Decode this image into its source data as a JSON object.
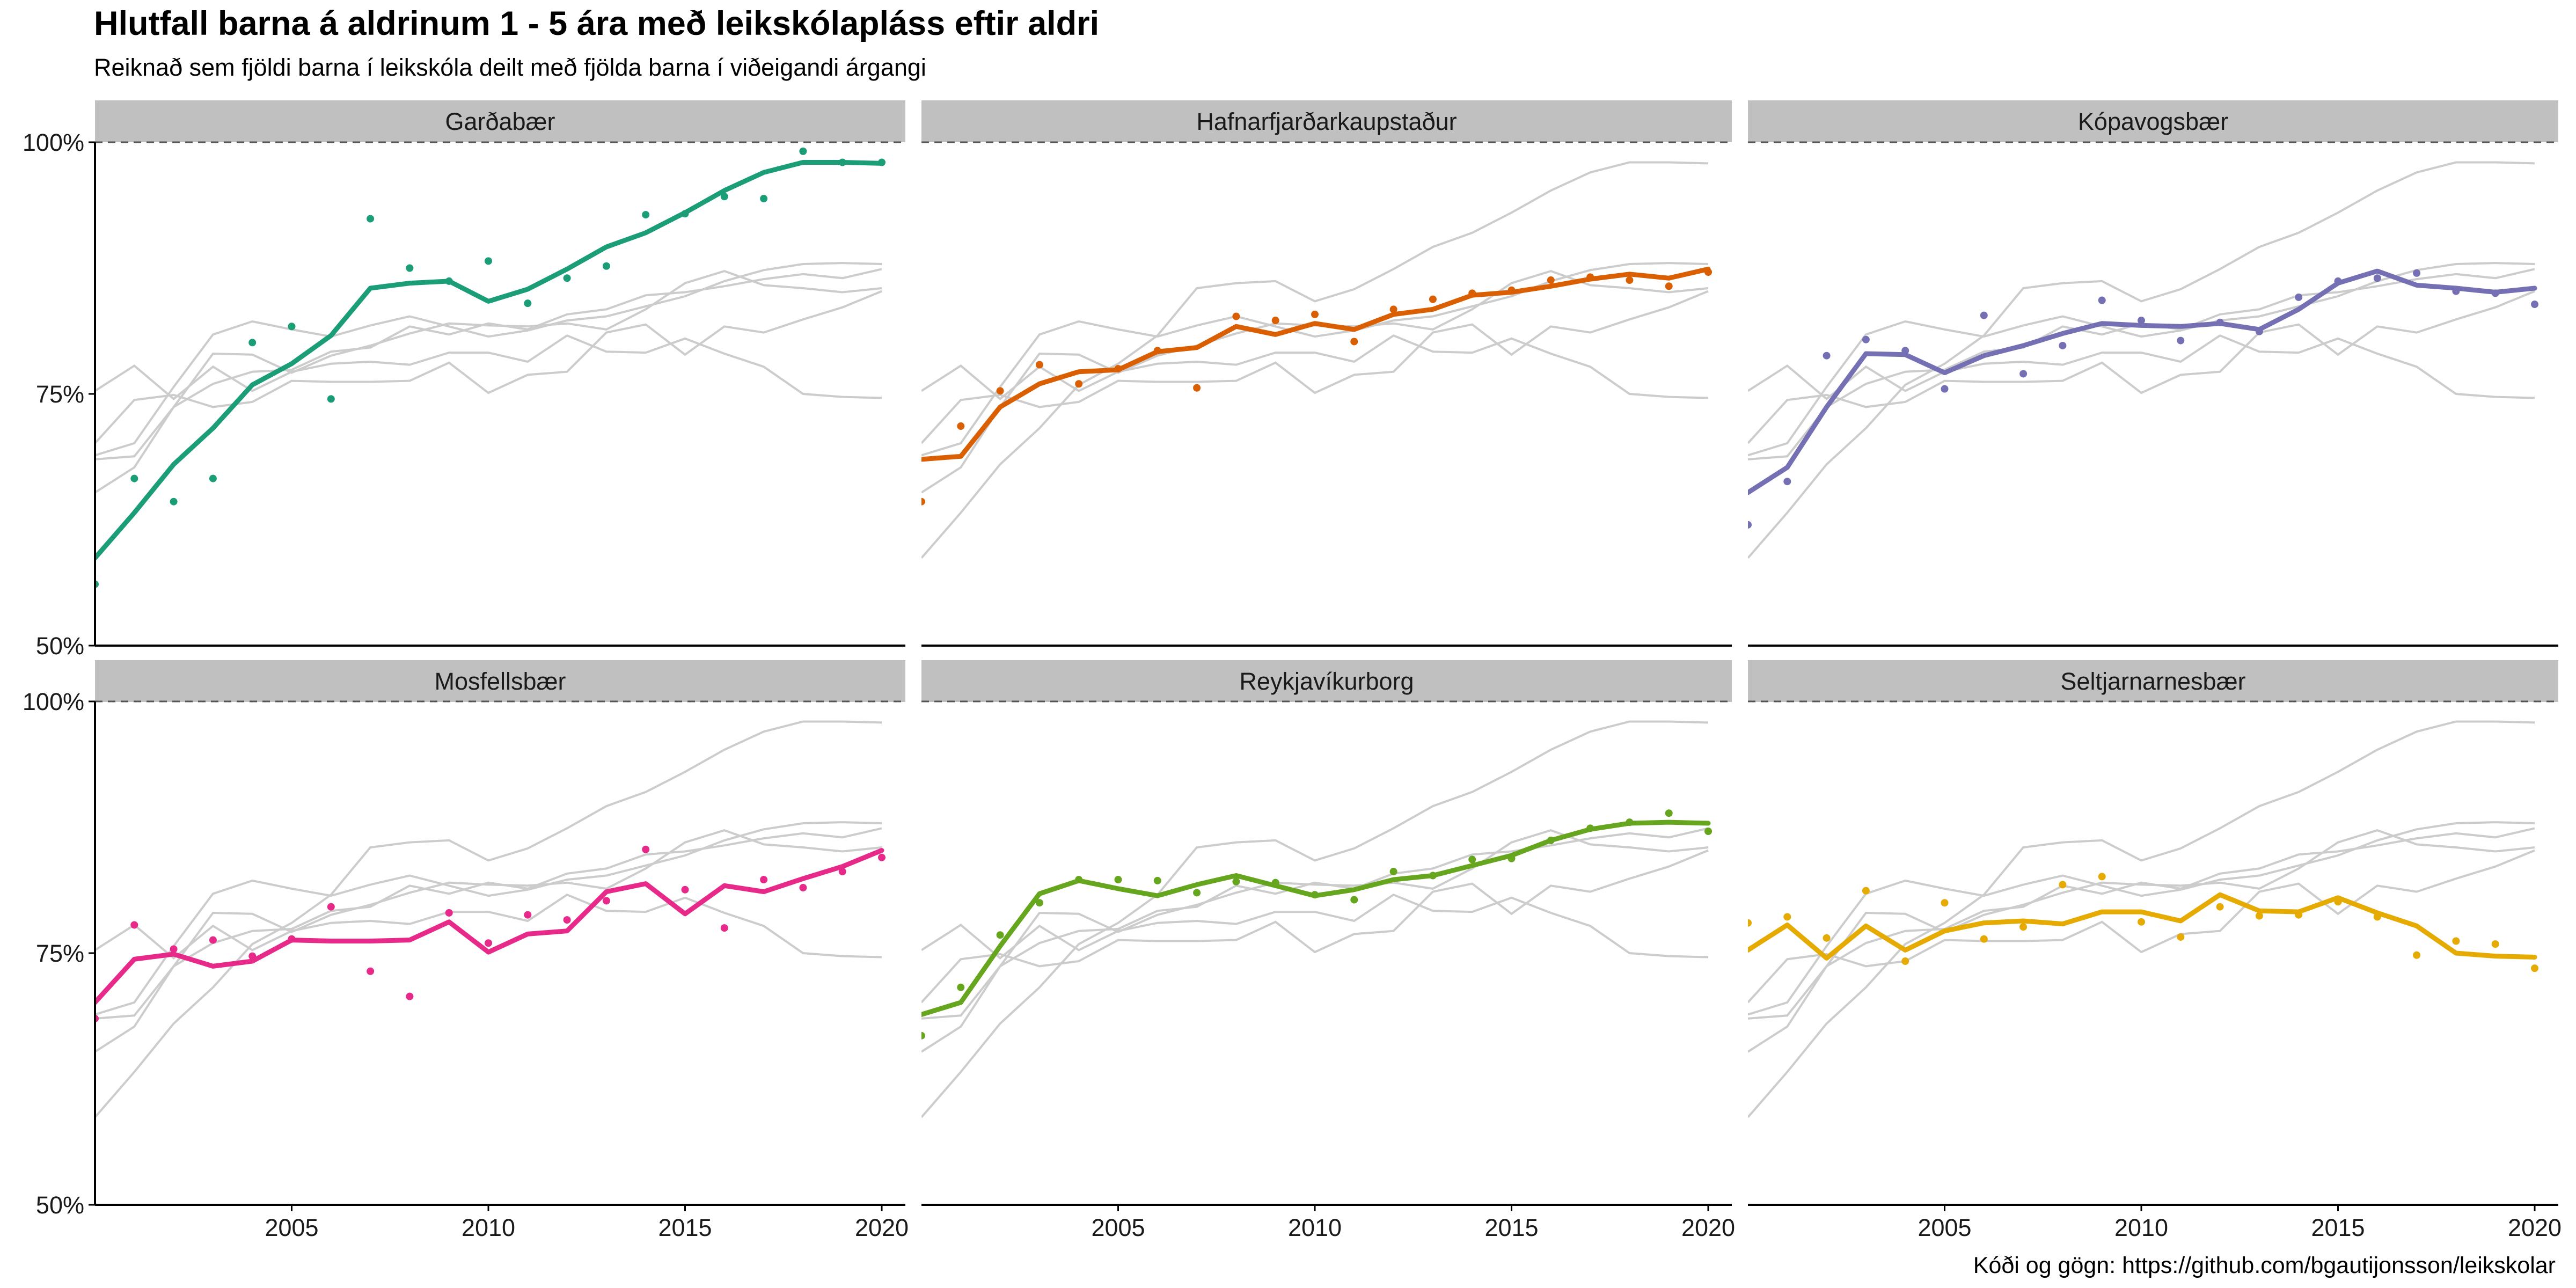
{
  "title": "Hlutfall barna á aldrinum 1 - 5 ára með leikskólapláss eftir aldri",
  "subtitle": "Reiknað sem fjöldi barna í leikskóla deilt með fjölda barna í viðeigandi árgangi",
  "caption": "Kóði og gögn: https://github.com/bgautijonsson/leikskolar",
  "chart_data": {
    "type": "line",
    "facets": [
      "Garðabær",
      "Hafnarfjarðarkaupstaður",
      "Kópavogsbær",
      "Mosfellsbær",
      "Reykjavíkurborg",
      "Seltjarnarnesbær"
    ],
    "x_ticks": [
      2005,
      2010,
      2015,
      2020
    ],
    "xlim": [
      2000,
      2020.6
    ],
    "y_ticks": [
      0.5,
      0.75,
      1.0
    ],
    "y_tick_labels": [
      "50%",
      "75%",
      "100%"
    ],
    "ylim": [
      0.5,
      1.0
    ],
    "reference_line": 1.0,
    "grid": false,
    "colors": {
      "Garðabær": "#1b9e77",
      "Hafnarfjarðarkaupstaður": "#d95f02",
      "Kópavogsbær": "#7570b3",
      "Mosfellsbær": "#e7298a",
      "Reykjavíkurborg": "#66a61e",
      "Seltjarnarnesbær": "#e6ab02",
      "background_lines": "#cccccc",
      "strip": "#c0c0c0"
    },
    "x": [
      2000,
      2001,
      2002,
      2003,
      2004,
      2005,
      2006,
      2007,
      2008,
      2009,
      2010,
      2011,
      2012,
      2013,
      2014,
      2015,
      2016,
      2017,
      2018,
      2019,
      2020
    ],
    "series": [
      {
        "name": "Garðabær",
        "trend": [
          0.587,
          0.632,
          0.68,
          0.716,
          0.759,
          0.78,
          0.808,
          0.855,
          0.86,
          0.862,
          0.842,
          0.854,
          0.874,
          0.896,
          0.91,
          0.93,
          0.952,
          0.97,
          0.98,
          0.98,
          0.979
        ],
        "points": [
          0.561,
          0.666,
          0.643,
          0.666,
          0.801,
          0.817,
          0.745,
          0.924,
          0.875,
          0.862,
          0.882,
          0.84,
          0.865,
          0.877,
          0.928,
          0.929,
          0.946,
          0.944,
          0.991,
          0.98,
          0.98
        ]
      },
      {
        "name": "Hafnarfjarðarkaupstaður",
        "trend": [
          0.685,
          0.688,
          0.737,
          0.76,
          0.772,
          0.774,
          0.792,
          0.796,
          0.817,
          0.809,
          0.82,
          0.814,
          0.829,
          0.834,
          0.848,
          0.851,
          0.857,
          0.864,
          0.869,
          0.865,
          0.874
        ],
        "points": [
          0.643,
          0.718,
          0.753,
          0.779,
          0.76,
          0.775,
          0.793,
          0.756,
          0.827,
          0.823,
          0.829,
          0.802,
          0.834,
          0.844,
          0.85,
          0.853,
          0.863,
          0.866,
          0.863,
          0.857,
          0.871
        ]
      },
      {
        "name": "Kópavogsbær",
        "trend": [
          0.652,
          0.677,
          0.737,
          0.79,
          0.789,
          0.771,
          0.788,
          0.798,
          0.81,
          0.82,
          0.818,
          0.817,
          0.82,
          0.814,
          0.834,
          0.86,
          0.872,
          0.858,
          0.855,
          0.851,
          0.855
        ],
        "points": [
          0.62,
          0.663,
          0.788,
          0.804,
          0.793,
          0.755,
          0.828,
          0.77,
          0.798,
          0.843,
          0.823,
          0.803,
          0.821,
          0.812,
          0.846,
          0.862,
          0.865,
          0.87,
          0.852,
          0.85,
          0.839
        ]
      },
      {
        "name": "Mosfellsbær",
        "trend": [
          0.701,
          0.744,
          0.749,
          0.737,
          0.742,
          0.763,
          0.762,
          0.762,
          0.763,
          0.781,
          0.751,
          0.769,
          0.772,
          0.811,
          0.819,
          0.789,
          0.817,
          0.811,
          0.824,
          0.836,
          0.852
        ],
        "points": [
          0.685,
          0.778,
          0.754,
          0.763,
          0.747,
          0.764,
          0.796,
          0.732,
          0.707,
          0.79,
          0.76,
          0.788,
          0.783,
          0.802,
          0.853,
          0.813,
          0.775,
          0.823,
          0.815,
          0.831,
          0.845
        ]
      },
      {
        "name": "Reykjavíkurborg",
        "trend": [
          0.689,
          0.701,
          0.757,
          0.809,
          0.822,
          0.814,
          0.807,
          0.818,
          0.827,
          0.817,
          0.807,
          0.813,
          0.823,
          0.827,
          0.837,
          0.847,
          0.862,
          0.873,
          0.879,
          0.88,
          0.879
        ],
        "points": [
          0.668,
          0.716,
          0.768,
          0.8,
          0.823,
          0.823,
          0.822,
          0.81,
          0.821,
          0.82,
          0.808,
          0.803,
          0.831,
          0.827,
          0.843,
          0.844,
          0.862,
          0.874,
          0.88,
          0.889,
          0.871
        ]
      },
      {
        "name": "Seltjarnarnesbær",
        "trend": [
          0.753,
          0.778,
          0.745,
          0.777,
          0.753,
          0.772,
          0.78,
          0.782,
          0.779,
          0.791,
          0.791,
          0.782,
          0.808,
          0.792,
          0.791,
          0.805,
          0.79,
          0.777,
          0.75,
          0.747,
          0.746
        ],
        "points": [
          0.78,
          0.786,
          0.765,
          0.812,
          0.742,
          0.8,
          0.764,
          0.776,
          0.818,
          0.826,
          0.781,
          0.766,
          0.796,
          0.787,
          0.788,
          0.801,
          0.786,
          0.748,
          0.762,
          0.759,
          0.735
        ]
      }
    ]
  }
}
